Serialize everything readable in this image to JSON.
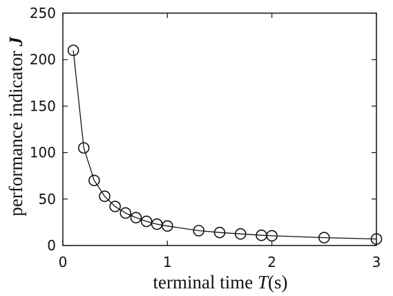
{
  "chart_data": {
    "type": "line",
    "title": "",
    "xlabel": {
      "prefix": "terminal time ",
      "symbol": "T",
      "suffix": "(s)"
    },
    "ylabel": {
      "prefix": "performance indicator ",
      "symbol": "J"
    },
    "xlim": [
      0,
      3
    ],
    "ylim": [
      0,
      250
    ],
    "xticks": [
      0,
      1,
      2,
      3
    ],
    "yticks": [
      0,
      50,
      100,
      150,
      200,
      250
    ],
    "grid": false,
    "legend": "none",
    "series": [
      {
        "marker": "open-circle",
        "line": "solid",
        "color": "#111111",
        "x": [
          0.1,
          0.2,
          0.3,
          0.4,
          0.5,
          0.6,
          0.7,
          0.8,
          0.9,
          1.0,
          1.3,
          1.5,
          1.7,
          1.9,
          2.0,
          2.5,
          3.0
        ],
        "y": [
          210,
          105,
          70,
          53,
          42,
          35,
          30,
          26,
          23,
          21,
          16,
          14,
          12.5,
          11,
          10.5,
          8.5,
          7
        ]
      }
    ]
  }
}
